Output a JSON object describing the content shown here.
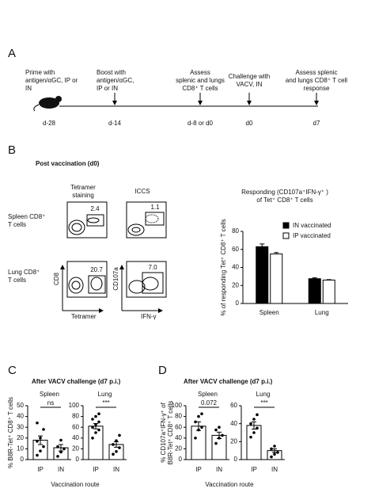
{
  "panel_a": {
    "label": "A",
    "events": [
      {
        "lines": [
          "Prime with",
          "antigen/αGC, IP or",
          "IN"
        ],
        "day": "d-28"
      },
      {
        "lines": [
          "Boost with",
          "antigen/αGC,",
          "IP or IN"
        ],
        "day": "d-14"
      },
      {
        "lines": [
          "Assess",
          "splenic and lungs",
          "CD8⁺ T cells"
        ],
        "day": "d-8 or d0"
      },
      {
        "lines": [
          "Challenge with",
          "VACV, IN"
        ],
        "day": "d0"
      },
      {
        "lines": [
          "Assess splenic",
          "and lungs CD8⁺ T cell",
          "response"
        ],
        "day": "d7"
      }
    ]
  },
  "panel_b": {
    "label": "B",
    "title": "Post vaccination (d0)",
    "column_headers": [
      [
        "Tetramer",
        "staining"
      ],
      [
        "ICCS"
      ]
    ],
    "row_labels": [
      [
        "Spleen CD8⁺",
        "T cells"
      ],
      [
        "Lung CD8⁺",
        "T cells"
      ]
    ],
    "gates": [
      "2.4",
      "1.1",
      "20.7",
      "7.0"
    ],
    "axis_labels": [
      "CD8",
      "Tetramer",
      "CD107a",
      "IFN-γ"
    ]
  },
  "panel_c": {
    "label": "C",
    "title": "After VACV challenge (d7 p.i.)",
    "ylabel": [
      "% B8R-Tet⁺ CD8⁺ T cells"
    ],
    "xlabel": "Vaccination route"
  },
  "panel_d": {
    "label": "D",
    "title": "After VACV challenge (d7 p.i.)",
    "ylabel": [
      "% CD107a⁺IFN-γ⁺ of",
      "B8R-Tet⁺ CD8⁺ T cells"
    ],
    "xlabel": "Vaccination route"
  },
  "chart_data": [
    {
      "type": "bar",
      "title": [
        "Responding (CD107a⁺IFN-γ⁺ )",
        "of Tet⁺ CD8⁺ T cells"
      ],
      "ylabel": "% of responding Tet⁺ CD8⁺ T cells",
      "categories": [
        "Spleen",
        "Lung"
      ],
      "ylim": [
        0,
        80
      ],
      "yticks": [
        0,
        20,
        40,
        60,
        80
      ],
      "series": [
        {
          "name": "IN vaccinated",
          "color": "#000000",
          "values": [
            63,
            27.5
          ],
          "errors": [
            3,
            1
          ]
        },
        {
          "name": "IP vaccinated",
          "color": "#ffffff",
          "values": [
            55,
            26
          ],
          "errors": [
            1.5,
            0.5
          ]
        }
      ]
    },
    {
      "type": "dotbar",
      "title": "Spleen",
      "categories": [
        "IP",
        "IN"
      ],
      "values": [
        18,
        11
      ],
      "errors": [
        4,
        3
      ],
      "points": [
        [
          4,
          8,
          12,
          17,
          20,
          28,
          34
        ],
        [
          3,
          7,
          10,
          12,
          18
        ]
      ],
      "ylim": [
        0,
        50
      ],
      "yticks": [
        0,
        10,
        20,
        30,
        40,
        50
      ],
      "annotation": "ns",
      "color": "#ffffff"
    },
    {
      "type": "dotbar",
      "title": "Lung",
      "categories": [
        "IP",
        "IN"
      ],
      "values": [
        62,
        28
      ],
      "errors": [
        5,
        5
      ],
      "points": [
        [
          40,
          50,
          55,
          60,
          65,
          70,
          75,
          80,
          85
        ],
        [
          10,
          15,
          22,
          28,
          35,
          45
        ]
      ],
      "ylim": [
        0,
        100
      ],
      "yticks": [
        0,
        20,
        40,
        60,
        80,
        100
      ],
      "annotation": "***",
      "color": "#ffffff"
    },
    {
      "type": "dotbar",
      "title": "Spleen",
      "categories": [
        "IP",
        "IN"
      ],
      "values": [
        62,
        45
      ],
      "errors": [
        8,
        6
      ],
      "points": [
        [
          40,
          55,
          60,
          70,
          80,
          85
        ],
        [
          30,
          40,
          45,
          55,
          60
        ]
      ],
      "ylim": [
        0,
        100
      ],
      "yticks": [
        0,
        20,
        40,
        60,
        80,
        100
      ],
      "annotation": "0.072",
      "color": "#ffffff"
    },
    {
      "type": "dotbar",
      "title": "Lung",
      "categories": [
        "IP",
        "IN"
      ],
      "values": [
        38,
        10
      ],
      "errors": [
        4,
        2
      ],
      "points": [
        [
          25,
          30,
          35,
          40,
          45,
          50
        ],
        [
          3,
          6,
          8,
          12,
          15
        ]
      ],
      "ylim": [
        0,
        60
      ],
      "yticks": [
        0,
        20,
        40,
        60
      ],
      "annotation": "***",
      "color": "#ffffff"
    }
  ]
}
